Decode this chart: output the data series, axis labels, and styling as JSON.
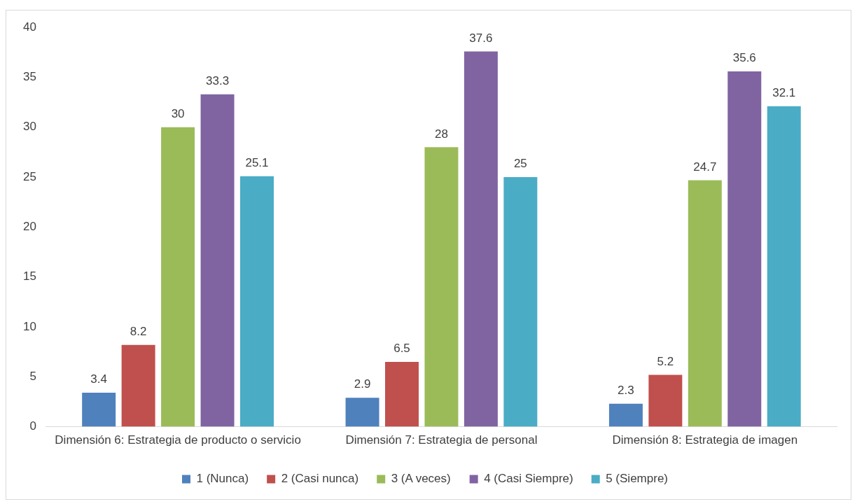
{
  "chart_data": {
    "type": "bar",
    "categories": [
      "Dimensión 6: Estrategia de producto o servicio",
      "Dimensión 7: Estrategia de personal",
      "Dimensión 8: Estrategia de imagen"
    ],
    "series": [
      {
        "name": "1 (Nunca)",
        "color": "#4f81bd",
        "values": [
          3.4,
          2.9,
          2.3
        ]
      },
      {
        "name": "2 (Casi nunca)",
        "color": "#c0504d",
        "values": [
          8.2,
          6.5,
          5.2
        ]
      },
      {
        "name": "3 (A veces)",
        "color": "#9bbb59",
        "values": [
          30,
          28,
          24.7
        ]
      },
      {
        "name": "4 (Casi Siempre)",
        "color": "#8064a2",
        "values": [
          33.3,
          37.6,
          35.6
        ]
      },
      {
        "name": "5 (Siempre)",
        "color": "#4bacc6",
        "values": [
          25.1,
          25,
          32.1
        ]
      }
    ],
    "ylim": [
      0,
      40
    ],
    "yticks": [
      0,
      5,
      10,
      15,
      20,
      25,
      30,
      35,
      40
    ],
    "grid": false,
    "legend": "bottom",
    "data_labels": true
  }
}
